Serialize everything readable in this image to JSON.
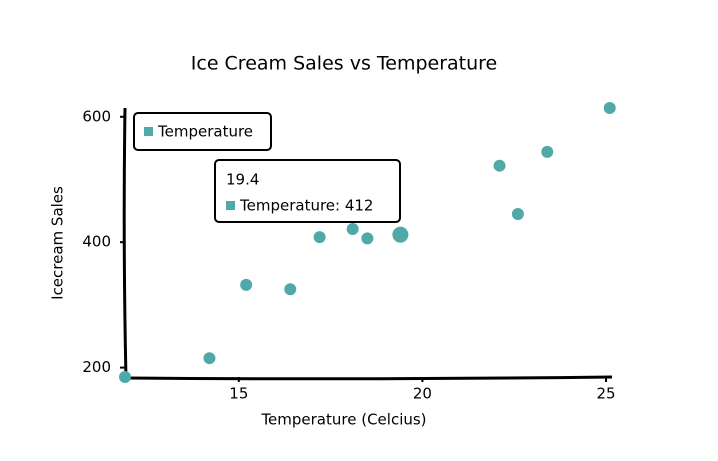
{
  "chart_data": {
    "type": "scatter",
    "title": "Ice Cream Sales vs Temperature",
    "x_label": "Temperature (Celcius)",
    "y_label": "Icecream Sales",
    "series": [
      {
        "name": "Temperature",
        "color": "#4fa9a8",
        "x": [
          14.2,
          16.4,
          11.9,
          15.2,
          18.5,
          22.1,
          19.4,
          25.1,
          23.4,
          18.1,
          22.6,
          17.2
        ],
        "values": [
          215,
          325,
          185,
          332,
          406,
          522,
          412,
          614,
          544,
          421,
          445,
          408
        ]
      }
    ],
    "xlim": [
      11.9,
      25.1
    ],
    "xticks": [
      15,
      20,
      25
    ],
    "ylim": [
      185,
      614
    ],
    "yticks": [
      200,
      400,
      600
    ],
    "grid": false,
    "legend": "top-left",
    "tooltip": {
      "index": 6,
      "text": "Temperature: 412"
    }
  }
}
